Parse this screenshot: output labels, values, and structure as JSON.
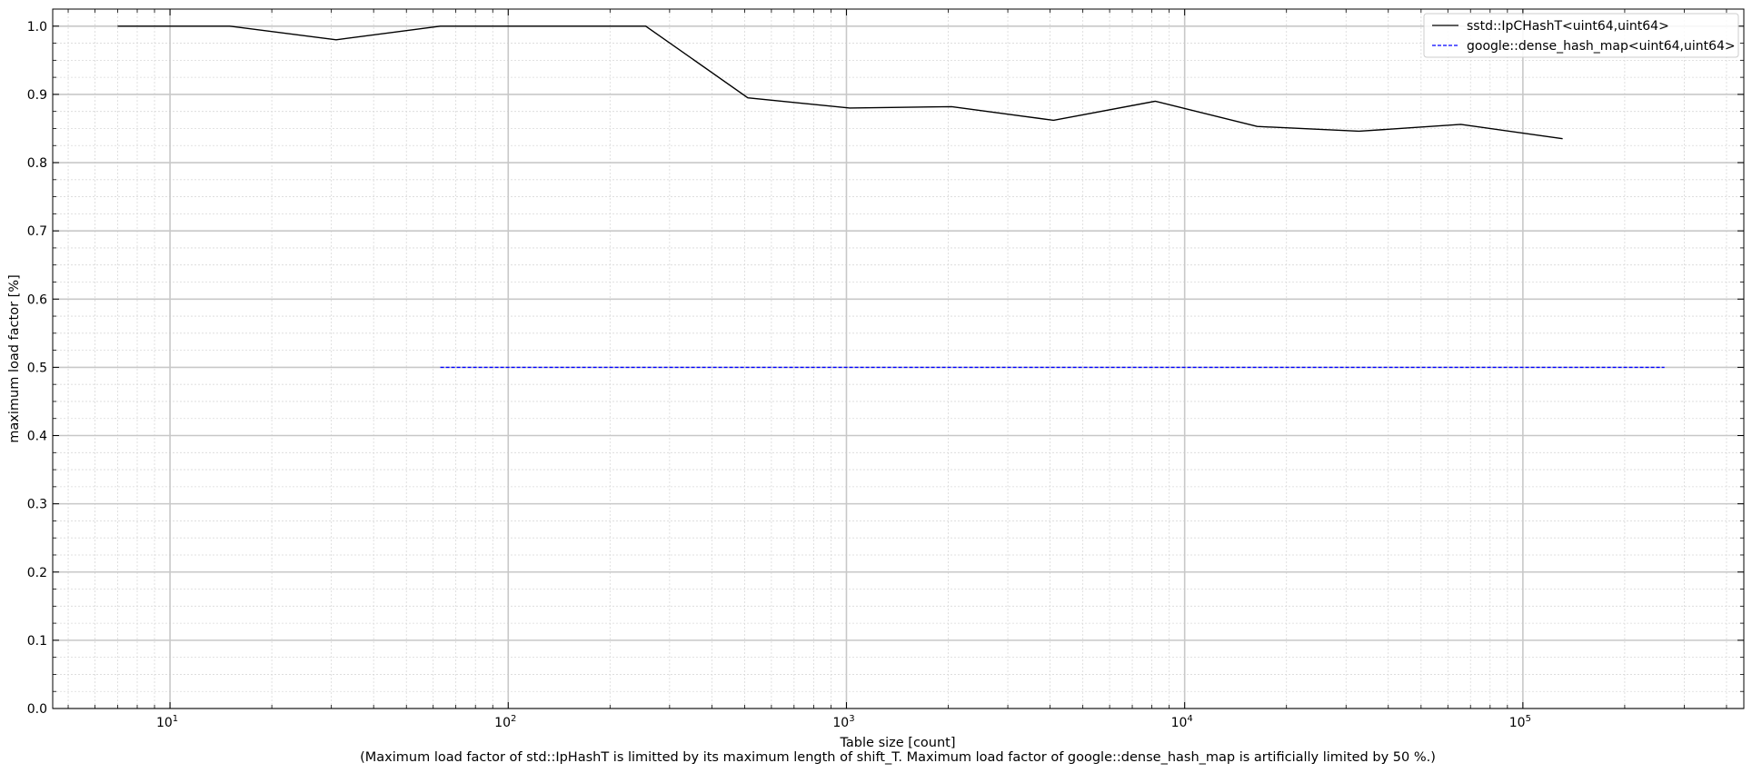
{
  "chart_data": {
    "type": "line",
    "xlabel": "Table size [count]",
    "xlabel_note": "(Maximum load factor of std::IpHashT is limitted by its maximum length of shift_T. Maximum load factor of google::dense_hash_map is artificially limited by 50 %.)",
    "ylabel": "maximum load factor [%]",
    "x_scale": "log",
    "xlim": [
      4.5,
      450000
    ],
    "ylim": [
      0,
      1.025
    ],
    "x_major_ticks": [
      {
        "value": 10,
        "base": "10",
        "exp": "1"
      },
      {
        "value": 100,
        "base": "10",
        "exp": "2"
      },
      {
        "value": 1000,
        "base": "10",
        "exp": "3"
      },
      {
        "value": 10000,
        "base": "10",
        "exp": "4"
      },
      {
        "value": 100000,
        "base": "10",
        "exp": "5"
      }
    ],
    "y_ticks": [
      "0.0",
      "0.1",
      "0.2",
      "0.3",
      "0.4",
      "0.5",
      "0.6",
      "0.7",
      "0.8",
      "0.9",
      "1.0"
    ],
    "grid": true,
    "legend_position": "top-right",
    "series": [
      {
        "name": "sstd::IpCHashT<uint64,uint64>",
        "color": "#000000",
        "style": "solid",
        "x": [
          7,
          15,
          31,
          63,
          127,
          255,
          511,
          1023,
          2047,
          4095,
          8191,
          16383,
          32767,
          65535,
          131071
        ],
        "y": [
          1.0,
          1.0,
          0.98,
          1.0,
          1.0,
          1.0,
          0.895,
          0.88,
          0.882,
          0.862,
          0.89,
          0.853,
          0.846,
          0.856,
          0.835
        ]
      },
      {
        "name": "google::dense_hash_map<uint64,uint64>",
        "color": "#0000ff",
        "style": "dashed",
        "x": [
          63,
          127,
          255,
          511,
          1023,
          2047,
          4095,
          8191,
          16383,
          32767,
          65535,
          131071,
          262143
        ],
        "y": [
          0.5,
          0.5,
          0.5,
          0.5,
          0.5,
          0.5,
          0.5,
          0.5,
          0.5,
          0.5,
          0.5,
          0.5,
          0.5
        ]
      }
    ]
  }
}
